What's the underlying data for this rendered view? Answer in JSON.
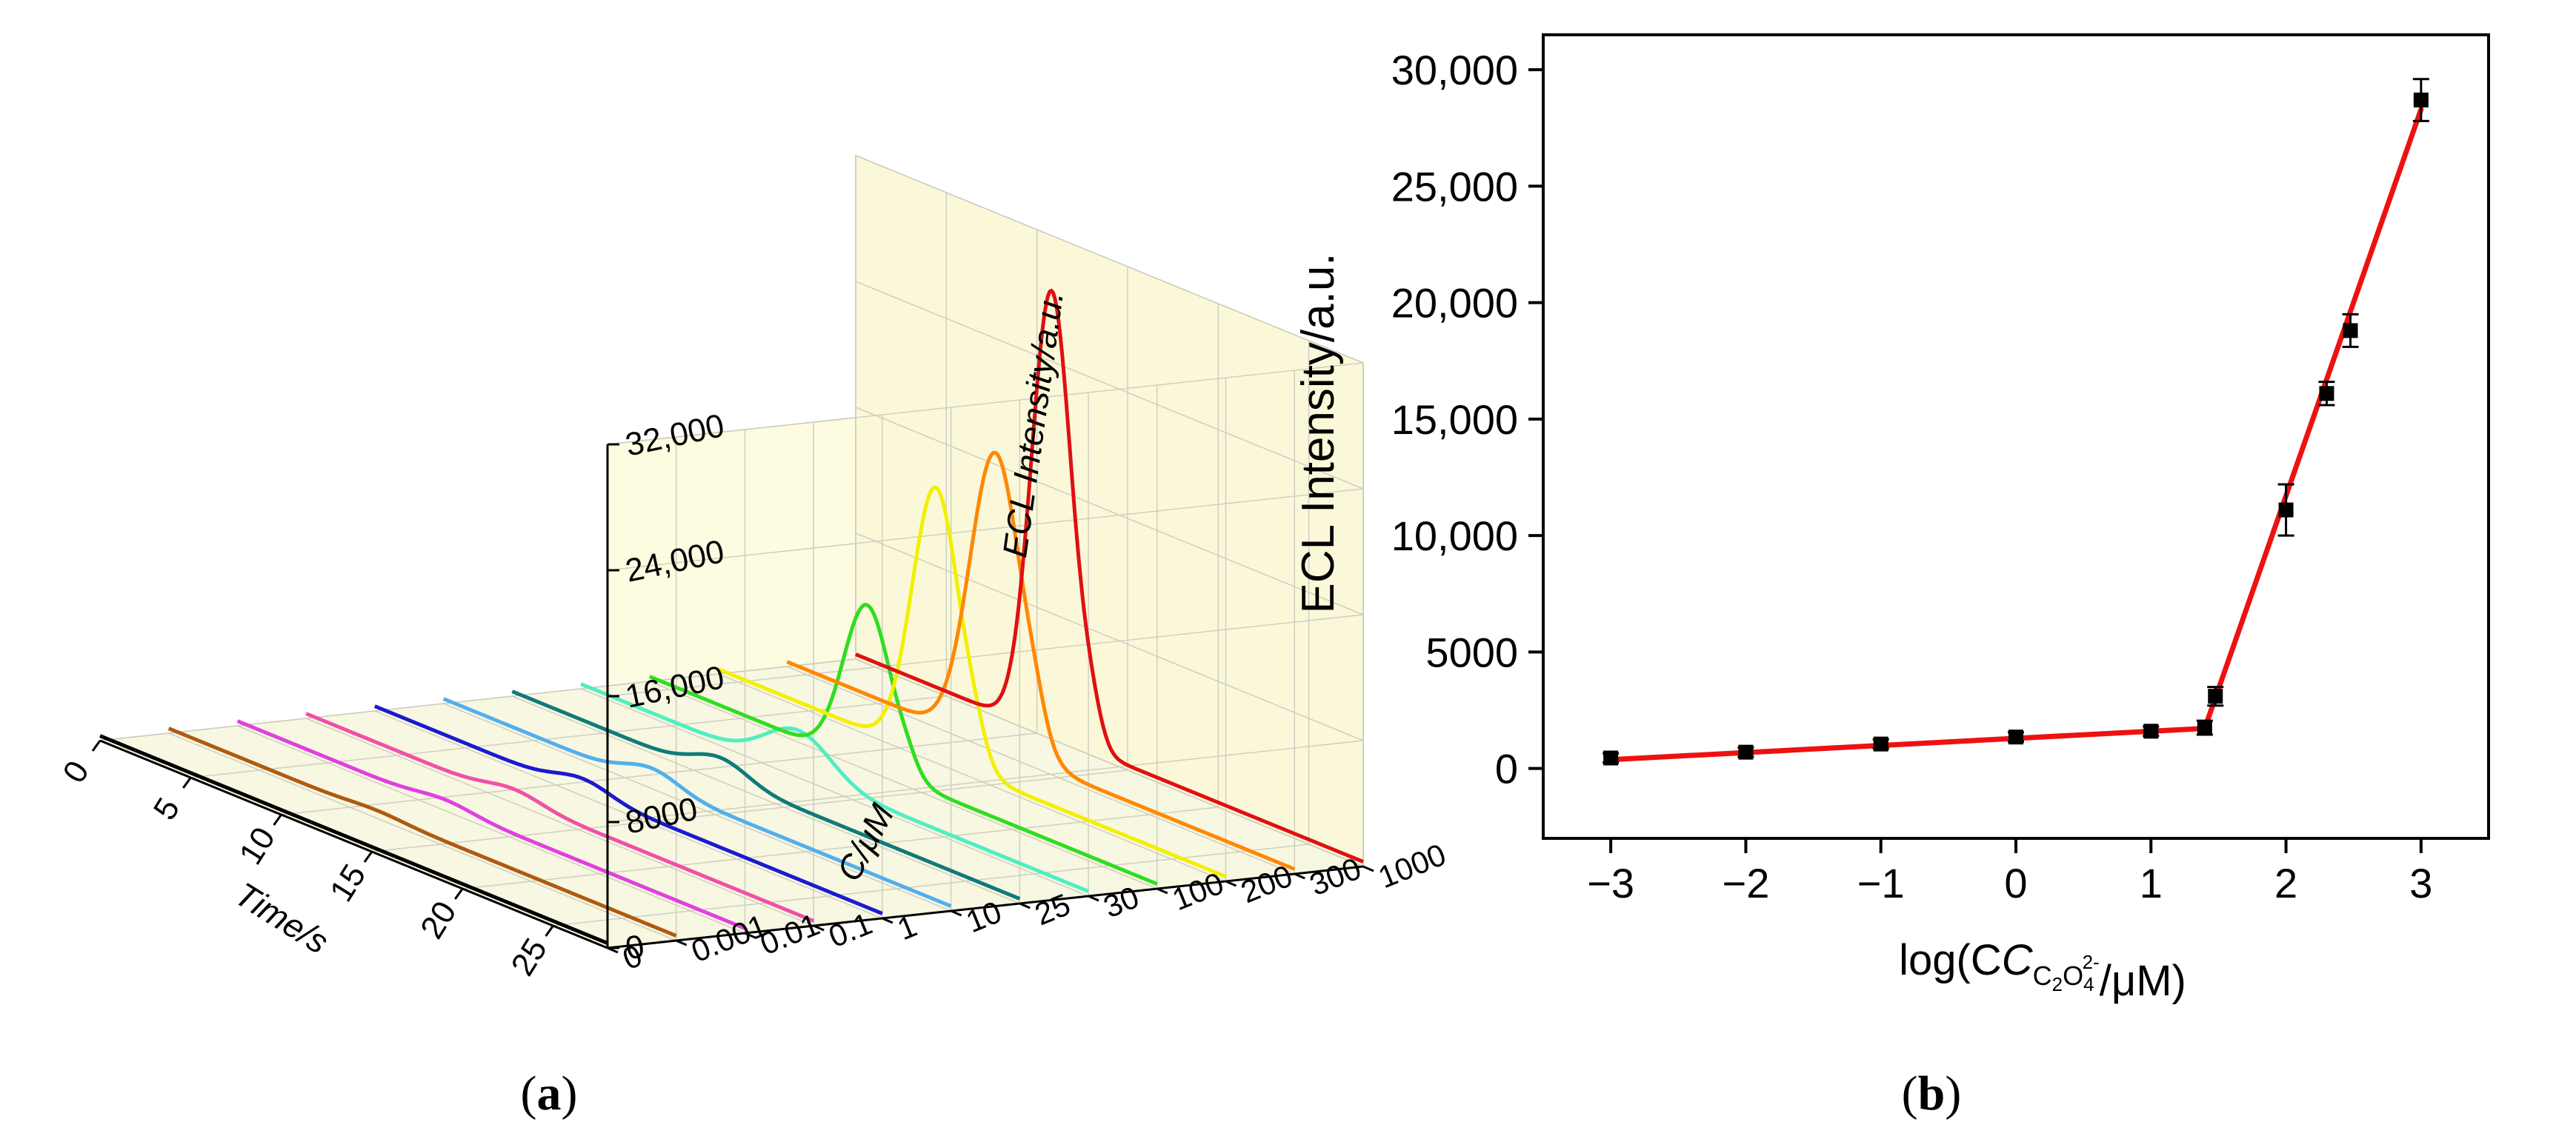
{
  "panel_labels": {
    "a": "a",
    "b": "b"
  },
  "chart_data": [
    {
      "id": "a",
      "type": "line",
      "projection": "3d-waterfall",
      "title": "",
      "xlabel": "Time/s",
      "ylabel": "C/μM",
      "zlabel": "ECL Intensity/a.u.",
      "xlim": [
        0,
        28
      ],
      "zlim": [
        0,
        32000
      ],
      "x_ticks": [
        "0",
        "5",
        "10",
        "15",
        "20",
        "25"
      ],
      "y_ticks": [
        "0",
        "0.001",
        "0.01",
        "0.1",
        "1",
        "10",
        "25",
        "30",
        "100",
        "200",
        "300",
        "1000"
      ],
      "z_ticks": [
        "0",
        "8000",
        "16,000",
        "24,000",
        "32,000"
      ],
      "grid": true,
      "series": [
        {
          "conc": "0",
          "color": "#000000",
          "baseline": 300,
          "peak_time": 11.5,
          "peak": 300,
          "width": 1.5
        },
        {
          "conc": "0.001",
          "color": "#b05a0f",
          "baseline": 300,
          "peak_time": 11.5,
          "peak": 500,
          "width": 1.5
        },
        {
          "conc": "0.01",
          "color": "#e040e0",
          "baseline": 300,
          "peak_time": 11.5,
          "peak": 700,
          "width": 1.5
        },
        {
          "conc": "0.1",
          "color": "#f050a8",
          "baseline": 300,
          "peak_time": 11.5,
          "peak": 900,
          "width": 1.5
        },
        {
          "conc": "1",
          "color": "#1a1ad0",
          "baseline": 300,
          "peak_time": 11.5,
          "peak": 1100,
          "width": 1.5
        },
        {
          "conc": "10",
          "color": "#50b0ee",
          "baseline": 300,
          "peak_time": 11.5,
          "peak": 1300,
          "width": 1.5
        },
        {
          "conc": "25",
          "color": "#0f7a7a",
          "baseline": 300,
          "peak_time": 11.5,
          "peak": 1500,
          "width": 1.5
        },
        {
          "conc": "30",
          "color": "#50eec0",
          "baseline": 300,
          "peak_time": 12.0,
          "peak": 3000,
          "width": 1.8
        },
        {
          "conc": "100",
          "color": "#30dd20",
          "baseline": 300,
          "peak_time": 12.0,
          "peak": 10500,
          "width": 1.3
        },
        {
          "conc": "200",
          "color": "#f2f000",
          "baseline": 300,
          "peak_time": 12.0,
          "peak": 17500,
          "width": 1.3
        },
        {
          "conc": "300",
          "color": "#ff8800",
          "baseline": 300,
          "peak_time": 11.5,
          "peak": 19000,
          "width": 1.4
        },
        {
          "conc": "1000",
          "color": "#e01010",
          "baseline": 300,
          "peak_time": 10.8,
          "peak": 28500,
          "width": 1.1
        }
      ]
    },
    {
      "id": "b",
      "type": "scatter",
      "title": "",
      "xlabel": "log(C",
      "xlabel_sub": "C",
      "xlabel_sub2": "2",
      "xlabel_sub3": "O",
      "xlabel_sub4": "4",
      "xlabel_sup": "2-",
      "xlabel_tail": "/μM)",
      "ylabel": "ECL Intensity/a.u.",
      "xlim": [
        -3.5,
        3.5
      ],
      "ylim": [
        -3000,
        31500
      ],
      "x_ticks": [
        -3,
        -2,
        -1,
        0,
        1,
        2,
        3
      ],
      "x_tick_labels": [
        "−3",
        "−2",
        "−1",
        "0",
        "1",
        "2",
        "3"
      ],
      "y_ticks": [
        0,
        5000,
        10000,
        15000,
        20000,
        25000,
        30000
      ],
      "y_tick_labels": [
        "0",
        "5000",
        "10,000",
        "15,000",
        "20,000",
        "25,000",
        "30,000"
      ],
      "marker_color": "#000000",
      "fit_color": "#ee1111",
      "points": [
        {
          "x": -3,
          "y": 450,
          "err": 200
        },
        {
          "x": -2,
          "y": 700,
          "err": 200
        },
        {
          "x": -1,
          "y": 1050,
          "err": 200
        },
        {
          "x": 0,
          "y": 1350,
          "err": 200
        },
        {
          "x": 1,
          "y": 1600,
          "err": 200
        },
        {
          "x": 1.398,
          "y": 1750,
          "err": 300
        },
        {
          "x": 1.477,
          "y": 3100,
          "err": 400
        },
        {
          "x": 2,
          "y": 11100,
          "err": 1100
        },
        {
          "x": 2.301,
          "y": 16100,
          "err": 500
        },
        {
          "x": 2.477,
          "y": 18800,
          "err": 700
        },
        {
          "x": 3,
          "y": 28700,
          "err": 900
        }
      ],
      "fit_lines": [
        {
          "x": [
            -3,
            1.398
          ],
          "y": [
            380,
            1720
          ]
        },
        {
          "x": [
            1.398,
            3
          ],
          "y": [
            1720,
            28300
          ]
        }
      ]
    }
  ]
}
